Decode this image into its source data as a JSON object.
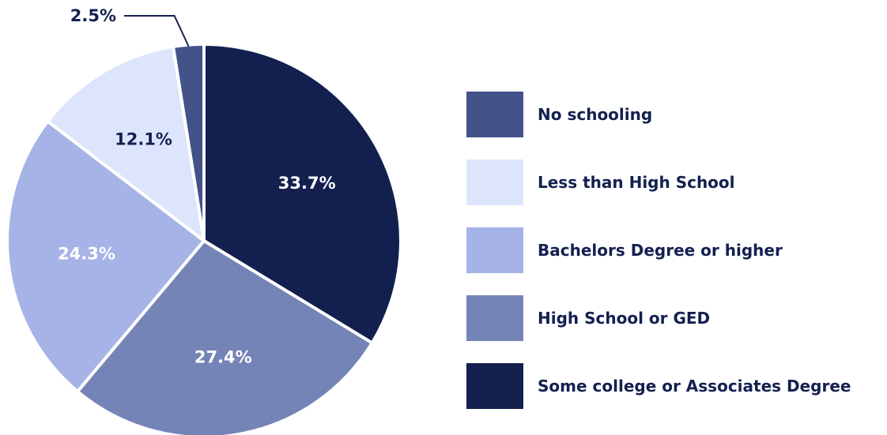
{
  "chart_data": {
    "type": "pie",
    "title": "",
    "slices": [
      {
        "label": "Some college or Associates Degree",
        "value": 33.7,
        "display": "33.7%",
        "color": "#13204f",
        "label_color": "#ffffff"
      },
      {
        "label": "High School or GED",
        "value": 27.4,
        "display": "27.4%",
        "color": "#7584b6",
        "label_color": "#ffffff"
      },
      {
        "label": "Bachelors Degree or higher",
        "value": 24.3,
        "display": "24.3%",
        "color": "#a6b3e6",
        "label_color": "#ffffff"
      },
      {
        "label": "Less than High School",
        "value": 12.1,
        "display": "12.1%",
        "color": "#dde5fc",
        "label_color": "#13204f"
      },
      {
        "label": "No schooling",
        "value": 2.5,
        "display": "2.5%",
        "color": "#44528a",
        "label_color": "#13204f"
      }
    ],
    "legend": {
      "placement": "right",
      "order": [
        "No schooling",
        "Less than High School",
        "Bachelors Degree or higher",
        "High School or GED",
        "Some college or Associates Degree"
      ]
    }
  }
}
